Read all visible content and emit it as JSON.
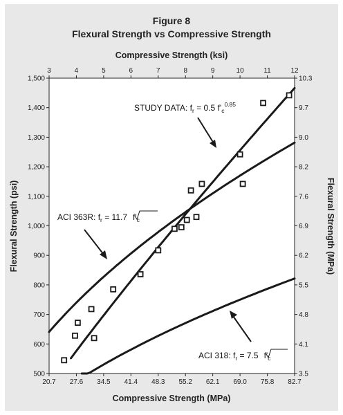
{
  "figure": {
    "label": "Figure 8",
    "title": "Flexural Strength vs Compressive Strength"
  },
  "chart_data": {
    "type": "scatter",
    "title": "Flexural Strength vs Compressive Strength",
    "xlabel_bottom": "Compressive Strength (MPa)",
    "xlabel_top": "Compressive Strength (ksi)",
    "ylabel_left": "Flexural Strength (psi)",
    "ylabel_right": "Flexural Strength (MPa)",
    "xlim_ksi": [
      3,
      12
    ],
    "ylim_psi": [
      500,
      1500
    ],
    "grid": false,
    "x_ticks_top": [
      "3",
      "4",
      "5",
      "6",
      "7",
      "8",
      "9",
      "10",
      "11",
      "12"
    ],
    "x_ticks_bottom": [
      "20.7",
      "27.6",
      "34.5",
      "41.4",
      "48.3",
      "55.2",
      "62.1",
      "69.0",
      "75.8",
      "82.7"
    ],
    "y_ticks_left": [
      "500",
      "600",
      "700",
      "800",
      "900",
      "1,000",
      "1,100",
      "1,200",
      "1,300",
      "1,400",
      "1,500"
    ],
    "y_ticks_right": [
      "3.5",
      "4.1",
      "4.8",
      "5.5",
      "6.2",
      "6.9",
      "7.6",
      "8.2",
      "9.0",
      "9.7",
      "10.3"
    ],
    "series": [
      {
        "name": "Study data",
        "kind": "points",
        "x_ksi": [
          3.55,
          3.95,
          4.05,
          4.55,
          4.65,
          5.35,
          6.35,
          7.0,
          7.6,
          7.85,
          8.05,
          8.2,
          8.4,
          8.6,
          10.0,
          10.1,
          10.85,
          11.8
        ],
        "y_psi": [
          545,
          628,
          672,
          718,
          620,
          785,
          836,
          917,
          990,
          995,
          1020,
          1120,
          1030,
          1142,
          1242,
          1142,
          1416,
          1442
        ]
      },
      {
        "name": "STUDY DATA",
        "kind": "curve",
        "formula": "0.5 * (1000*x)^0.85",
        "x_range_ksi": [
          3.8,
          12
        ]
      },
      {
        "name": "ACI 363R",
        "kind": "curve",
        "formula": "11.7 * sqrt(1000*x)",
        "x_range_ksi": [
          3,
          12
        ]
      },
      {
        "name": "ACI 318",
        "kind": "curve",
        "formula": "7.5 * sqrt(1000*x)",
        "x_range_ksi": [
          4.2,
          12
        ]
      }
    ]
  },
  "annotations": {
    "study": {
      "prefix": "STUDY DATA: f",
      "sub1": "r",
      "mid": " = 0.5 f'",
      "sub2": "c",
      "sup": "0.85"
    },
    "aci363": {
      "prefix": "ACI 363R: f",
      "sub1": "r",
      "mid": " = 11.7",
      "rad": "f'",
      "sub2": "c"
    },
    "aci318": {
      "prefix": "ACI 318: f",
      "sub1": "r",
      "mid": " = 7.5",
      "rad": "f'",
      "sub2": "c"
    }
  }
}
